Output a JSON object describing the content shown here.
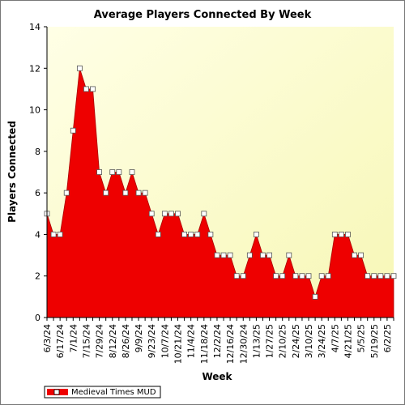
{
  "chart_data": {
    "type": "area",
    "title": "Average Players Connected By Week",
    "xlabel": "Week",
    "ylabel": "Players Connected",
    "ylim": [
      0,
      14
    ],
    "yticks": [
      0,
      2,
      4,
      6,
      8,
      10,
      12,
      14
    ],
    "grid": false,
    "legend_placement": "bottom-left",
    "background_gradient": [
      "#ffffe6",
      "#f7f7b6"
    ],
    "area_color": "#ee0000",
    "marker_fill": "#ffffff",
    "tick_labels": [
      "6/3/24",
      "6/17/24",
      "7/1/24",
      "7/15/24",
      "7/29/24",
      "8/12/24",
      "8/26/24",
      "9/9/24",
      "9/23/24",
      "10/7/24",
      "10/21/24",
      "11/4/24",
      "11/18/24",
      "12/2/24",
      "12/16/24",
      "12/30/24",
      "1/13/25",
      "1/27/25",
      "2/10/25",
      "2/24/25",
      "3/10/25",
      "3/24/25",
      "4/7/25",
      "4/21/25",
      "5/5/25",
      "5/19/25",
      "6/2/25"
    ],
    "series": [
      {
        "name": "Medieval Times MUD",
        "x": [
          "6/3/24",
          "6/10/24",
          "6/17/24",
          "6/24/24",
          "7/1/24",
          "7/8/24",
          "7/15/24",
          "7/22/24",
          "7/29/24",
          "8/5/24",
          "8/12/24",
          "8/19/24",
          "8/26/24",
          "9/2/24",
          "9/9/24",
          "9/16/24",
          "9/23/24",
          "9/30/24",
          "10/7/24",
          "10/14/24",
          "10/21/24",
          "10/28/24",
          "11/4/24",
          "11/11/24",
          "11/18/24",
          "11/25/24",
          "12/2/24",
          "12/9/24",
          "12/16/24",
          "12/23/24",
          "12/30/24",
          "1/6/25",
          "1/13/25",
          "1/20/25",
          "1/27/25",
          "2/3/25",
          "2/10/25",
          "2/17/25",
          "2/24/25",
          "3/3/25",
          "3/10/25",
          "3/17/25",
          "3/24/25",
          "3/31/25",
          "4/7/25",
          "4/14/25",
          "4/21/25",
          "4/28/25",
          "5/5/25",
          "5/12/25",
          "5/19/25",
          "5/26/25",
          "6/2/25",
          "6/9/25"
        ],
        "values": [
          5,
          4,
          4,
          6,
          9,
          12,
          11,
          11,
          7,
          6,
          7,
          7,
          6,
          7,
          6,
          6,
          5,
          4,
          5,
          5,
          5,
          4,
          4,
          4,
          5,
          4,
          3,
          3,
          3,
          2,
          2,
          3,
          4,
          3,
          3,
          2,
          2,
          3,
          2,
          2,
          2,
          1,
          2,
          2,
          4,
          4,
          4,
          3,
          3,
          2,
          2,
          2,
          2,
          2
        ]
      }
    ]
  }
}
